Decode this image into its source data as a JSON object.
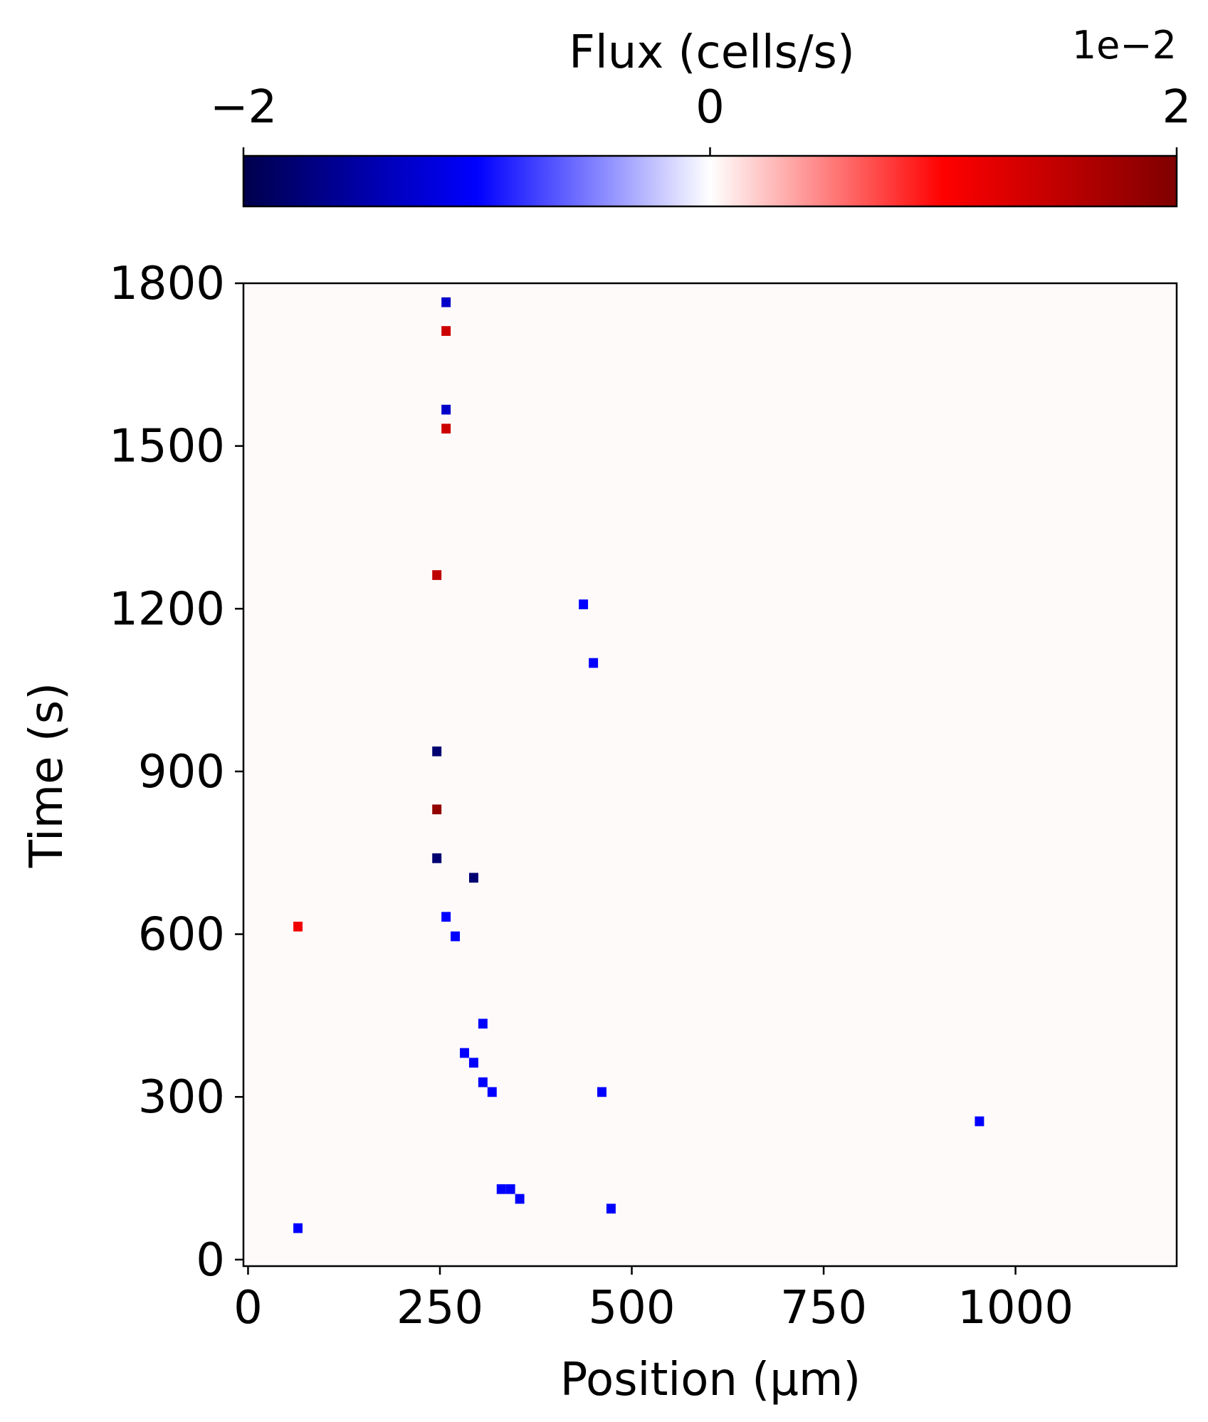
{
  "chart_data": {
    "type": "heatmap",
    "xlabel": "Position (μm)",
    "ylabel": "Time (s)",
    "xlim": [
      -6,
      1210
    ],
    "ylim": [
      -12,
      1800
    ],
    "x_ticks": [
      0,
      250,
      500,
      750,
      1000
    ],
    "x_tick_labels": [
      "0",
      "250",
      "500",
      "750",
      "1000"
    ],
    "y_ticks": [
      0,
      300,
      600,
      900,
      1200,
      1500,
      1800
    ],
    "y_tick_labels": [
      "0",
      "300",
      "600",
      "900",
      "1200",
      "1500",
      "1800"
    ],
    "background_color": "#fffafa",
    "colorbar": {
      "title": "Flux (cells/s)",
      "scale_label": "1e−2",
      "range": [
        -2,
        2
      ],
      "ticks": [
        -2,
        0,
        2
      ],
      "tick_labels": [
        "−2",
        "0",
        "2"
      ],
      "colormap": "seismic",
      "colors": [
        "#00004c",
        "#0000ff",
        "#ffffff",
        "#ff0000",
        "#7f0000"
      ]
    },
    "cell_size": {
      "x": 12,
      "y": 18
    },
    "points": [
      {
        "x": 258,
        "y": 1765,
        "value": -1.3
      },
      {
        "x": 258,
        "y": 1712,
        "value": 1.4
      },
      {
        "x": 258,
        "y": 1567,
        "value": -1.3
      },
      {
        "x": 258,
        "y": 1532,
        "value": 1.4
      },
      {
        "x": 246,
        "y": 1262,
        "value": 1.5
      },
      {
        "x": 437,
        "y": 1208,
        "value": -1.0
      },
      {
        "x": 450,
        "y": 1100,
        "value": -1.0
      },
      {
        "x": 246,
        "y": 937,
        "value": -1.8
      },
      {
        "x": 246,
        "y": 830,
        "value": 1.85
      },
      {
        "x": 246,
        "y": 740,
        "value": -1.8
      },
      {
        "x": 294,
        "y": 704,
        "value": -1.8
      },
      {
        "x": 65,
        "y": 614,
        "value": 1.1
      },
      {
        "x": 258,
        "y": 632,
        "value": -1.0
      },
      {
        "x": 270,
        "y": 596,
        "value": -1.0
      },
      {
        "x": 306,
        "y": 435,
        "value": -1.0
      },
      {
        "x": 282,
        "y": 381,
        "value": -1.0
      },
      {
        "x": 294,
        "y": 363,
        "value": -1.0
      },
      {
        "x": 306,
        "y": 327,
        "value": -1.0
      },
      {
        "x": 318,
        "y": 309,
        "value": -1.0
      },
      {
        "x": 461,
        "y": 309,
        "value": -1.0
      },
      {
        "x": 953,
        "y": 255,
        "value": -1.0
      },
      {
        "x": 330,
        "y": 130,
        "value": -1.0
      },
      {
        "x": 342,
        "y": 130,
        "value": -1.0
      },
      {
        "x": 354,
        "y": 112,
        "value": -1.0
      },
      {
        "x": 473,
        "y": 94,
        "value": -1.0
      },
      {
        "x": 65,
        "y": 58,
        "value": -1.0
      }
    ]
  }
}
